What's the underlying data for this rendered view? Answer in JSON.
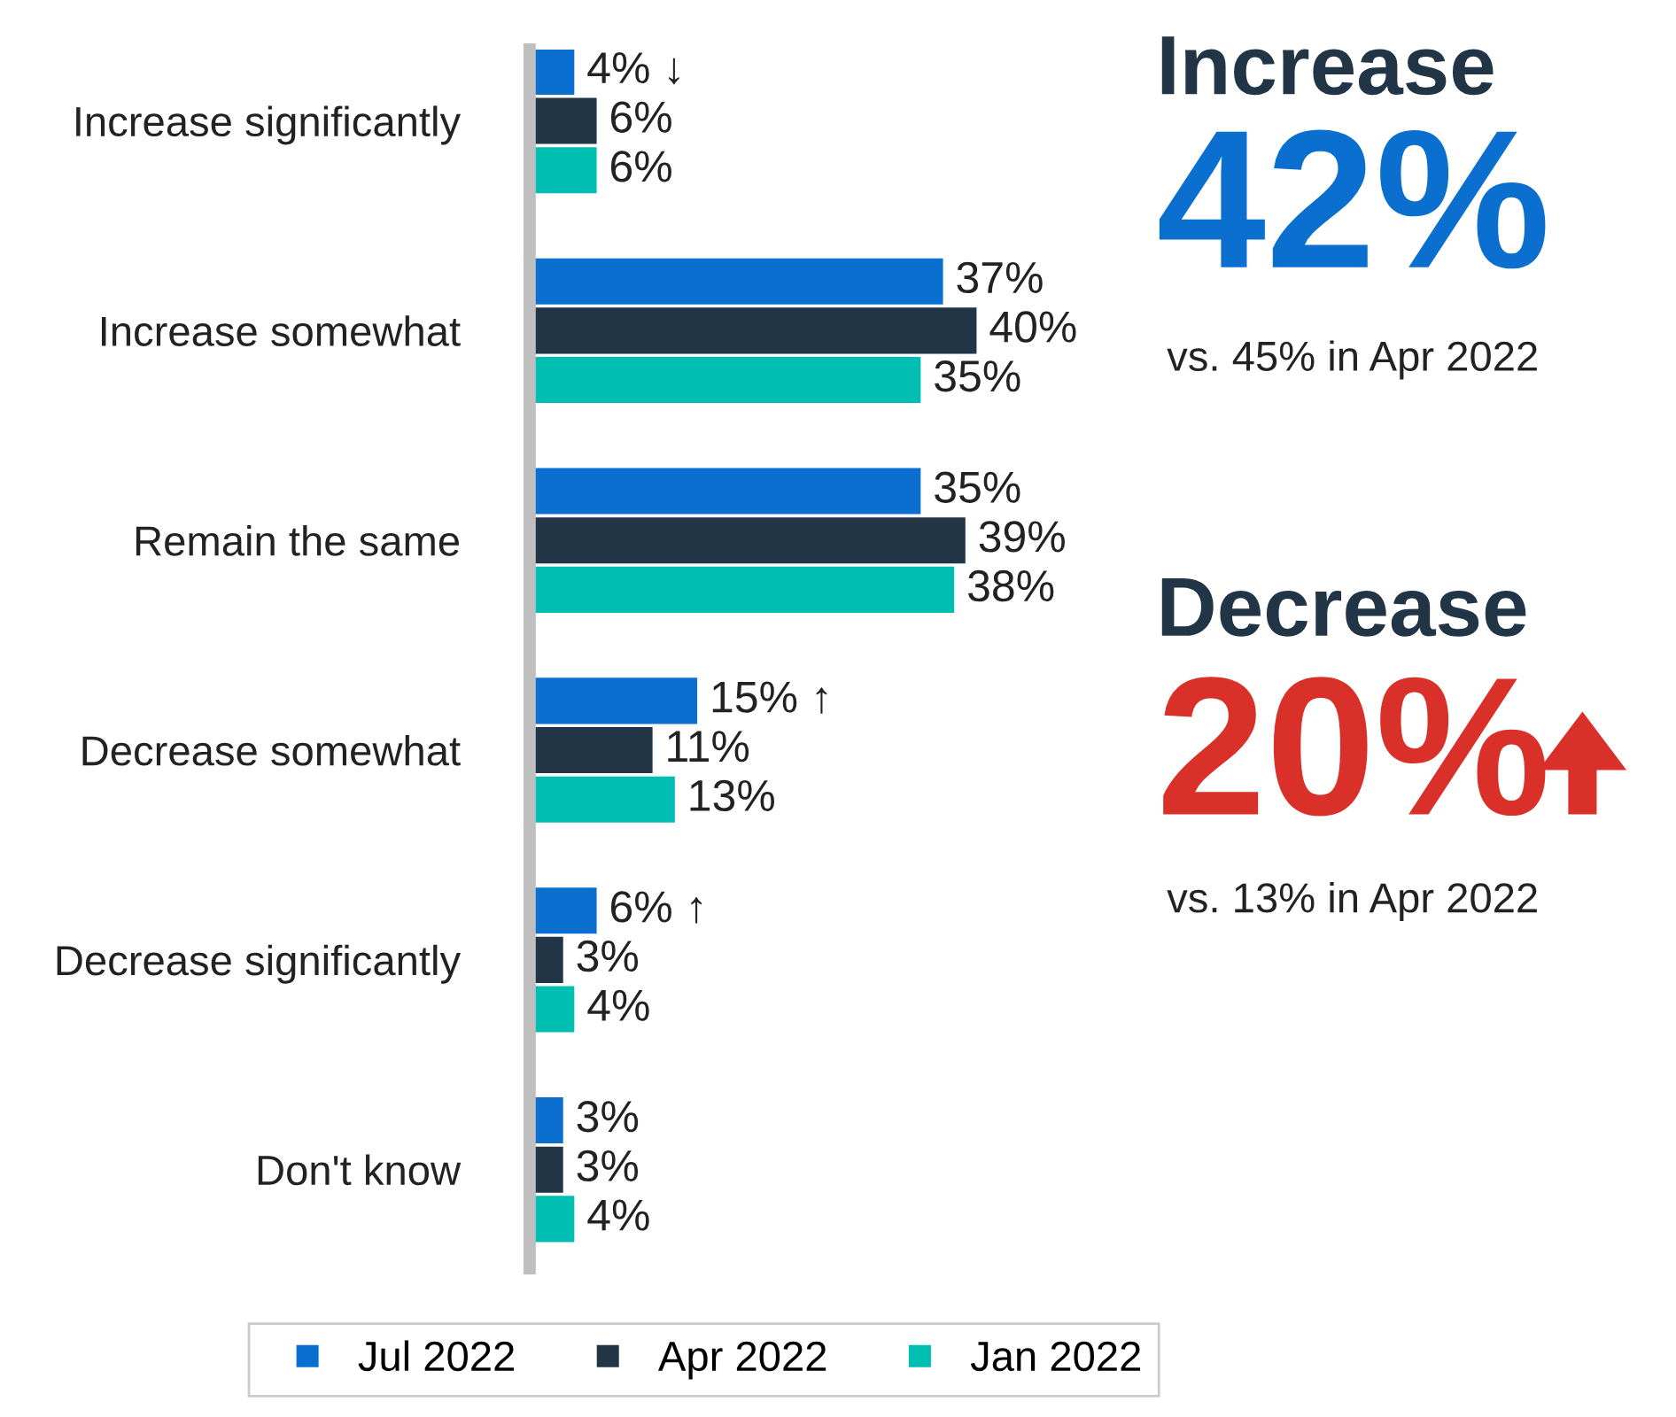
{
  "chart_data": [
    {
      "type": "bar",
      "orientation": "horizontal",
      "categories": [
        "Increase significantly",
        "Increase somewhat",
        "Remain the same",
        "Decrease somewhat",
        "Decrease significantly",
        "Don't know"
      ],
      "series": [
        {
          "name": "Jul 2022",
          "color": "#0a6fcf",
          "values": [
            4,
            37,
            35,
            15,
            6,
            3
          ],
          "value_labels": [
            "4% ↓",
            "37%",
            "35%",
            "15% ↑",
            "6% ↑",
            "3%"
          ]
        },
        {
          "name": "Apr 2022",
          "color": "#213547",
          "values": [
            6,
            40,
            39,
            11,
            3,
            3
          ],
          "value_labels": [
            "6%",
            "40%",
            "39%",
            "11%",
            "3%",
            "3%"
          ]
        },
        {
          "name": "Jan 2022",
          "color": "#00bfb2",
          "values": [
            6,
            35,
            38,
            13,
            4,
            4
          ],
          "value_labels": [
            "6%",
            "35%",
            "38%",
            "13%",
            "4%",
            "4%"
          ]
        }
      ],
      "grid": false,
      "legend": "bottom",
      "tick_labels": "y"
    },
    {
      "type": "other",
      "annotations": [
        "Increase",
        "42%",
        "vs. 45% in Apr 2022",
        "Decrease",
        "20%",
        "vs. 13% in Apr 2022"
      ]
    }
  ]
}
